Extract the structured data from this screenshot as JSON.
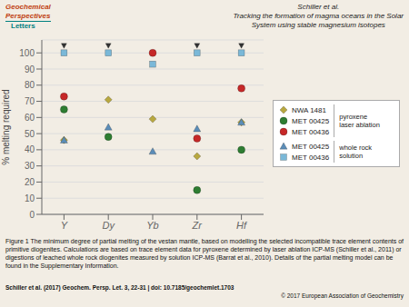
{
  "chart_data": {
    "type": "scatter",
    "title": "Schiller et al.\nTracking the formation of magma oceans in the Solar\nSystem using stable magnesium isotopes",
    "ylabel": "% melting required",
    "categories": [
      "Y",
      "Dy",
      "Yb",
      "Zr",
      "Hf"
    ],
    "series": [
      {
        "name": "NWA 1481",
        "color": "#b8a840",
        "marker": "diamond",
        "values": [
          46,
          71,
          59,
          36,
          57
        ]
      },
      {
        "name": "MET 00425",
        "color": "#2e7d32",
        "marker": "circle",
        "values": [
          65,
          48,
          null,
          15,
          40
        ]
      },
      {
        "name": "MET 00436",
        "color": "#c62828",
        "marker": "circle",
        "values": [
          73,
          null,
          100,
          47,
          78
        ]
      },
      {
        "name": "MET 00425",
        "color": "#5b8db8",
        "marker": "triangle",
        "values": [
          46,
          54,
          39,
          53,
          57
        ]
      },
      {
        "name": "MET 00436",
        "color": "#7ab8d8",
        "marker": "square",
        "values": [
          100,
          100,
          93,
          100,
          100
        ]
      }
    ],
    "overflow": {
      "color": "#333333",
      "marker": "triangle-down",
      "values": [
        104.5,
        104.5,
        null,
        104.5,
        104.5
      ]
    },
    "ylim": [
      0,
      108
    ],
    "yticks": [
      0,
      10,
      20,
      30,
      40,
      50,
      60,
      70,
      80,
      90,
      100
    ],
    "grid": true,
    "legend": "right",
    "annotations": [
      "Geochemical",
      "Perspectives",
      "Letters",
      "pyroxene\nlaser ablation",
      "whole rock\nsolution",
      "Figure 1 The minimum degree of partial melting of the vestan mantle, based on modelling the selected incompatible trace element contents of primitive diogenites. Calculations are based on trace element data for pyroxene determined by laser ablation ICP-MS (Schiller et al., 2011) or digestions of leached whole rock diogenites measured by solution ICP-MS (Barrat et al., 2010). Details of the partial melting model can be found in the Supplementary Information.",
      "Schiller et al. (2017) Geochem. Persp. Let. 3, 22-31 | doi: 10.7185/geochemlet.1703",
      "© 2017 European Association of Geochemistry"
    ]
  }
}
